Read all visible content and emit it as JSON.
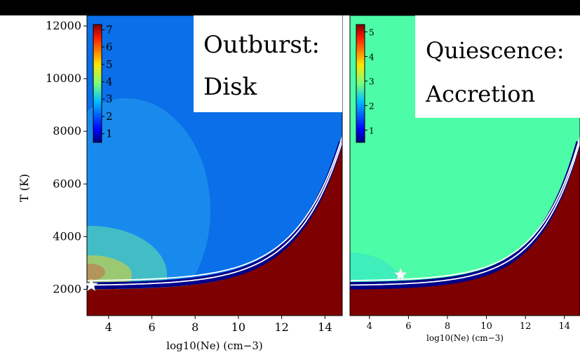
{
  "chart_data": [
    {
      "type": "heatmap",
      "panel_title_lines": [
        "Outburst:",
        "Disk"
      ],
      "xlabel": "log10(Ne) (cm−3)",
      "ylabel": "T (K)",
      "xlim": [
        3.0,
        14.8
      ],
      "ylim": [
        1000,
        12400
      ],
      "xticks": [
        4,
        6,
        8,
        10,
        12,
        14
      ],
      "yticks": [
        2000,
        4000,
        6000,
        8000,
        10000,
        12000
      ],
      "colorbar": {
        "min": 0.5,
        "max": 7.3,
        "ticks": [
          1,
          2,
          3,
          4,
          5,
          6,
          7
        ]
      },
      "region_values": {
        "upper": 1.9,
        "lower_saturated": 7.3
      },
      "marker": {
        "symbol": "star",
        "x": 3.2,
        "y": 2150
      }
    },
    {
      "type": "heatmap",
      "panel_title_lines": [
        "Quiescence:",
        "Accretion"
      ],
      "xlabel": "log10(Ne) (cm−3)",
      "ylabel": "",
      "xlim": [
        3.0,
        14.8
      ],
      "ylim": [
        1000,
        12400
      ],
      "xticks": [
        4,
        6,
        8,
        10,
        12,
        14
      ],
      "yticks": [],
      "colorbar": {
        "min": 0.5,
        "max": 5.3,
        "ticks": [
          1,
          2,
          3,
          4,
          5
        ]
      },
      "region_values": {
        "upper": 2.9,
        "lower_saturated": 5.3
      },
      "marker": {
        "symbol": "star",
        "x": 5.6,
        "y": 2550
      }
    }
  ]
}
